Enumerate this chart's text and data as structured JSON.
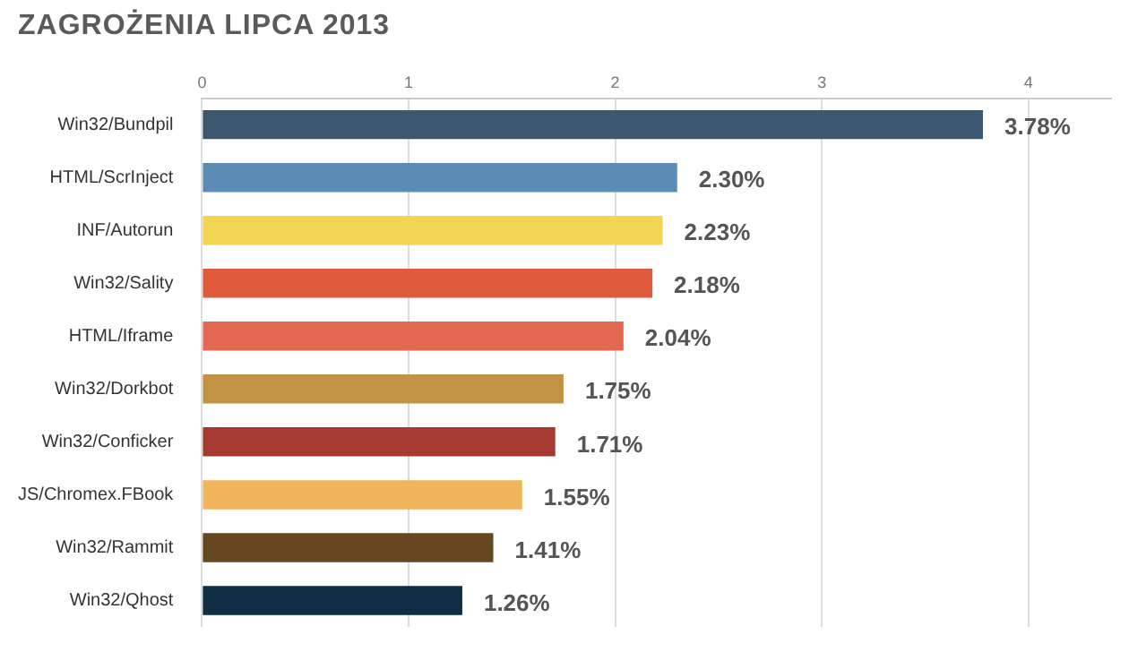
{
  "chart_data": {
    "type": "bar",
    "orientation": "horizontal",
    "title": "ZAGROŻENIA LIPCA 2013",
    "categories": [
      "Win32/Bundpil",
      "HTML/ScrInject",
      "INF/Autorun",
      "Win32/Sality",
      "HTML/Iframe",
      "Win32/Dorkbot",
      "Win32/Conficker",
      "JS/Chromex.FBook",
      "Win32/Rammit",
      "Win32/Qhost"
    ],
    "values": [
      3.78,
      2.3,
      2.23,
      2.18,
      2.04,
      1.75,
      1.71,
      1.55,
      1.41,
      1.26
    ],
    "value_labels": [
      "3.78%",
      "2.30%",
      "2.23%",
      "2.18%",
      "2.04%",
      "1.75%",
      "1.71%",
      "1.55%",
      "1.41%",
      "1.26%"
    ],
    "colors": [
      "#3c5870",
      "#5a8cb6",
      "#f2d352",
      "#e05a3b",
      "#e26852",
      "#c29342",
      "#a63a31",
      "#f0b55a",
      "#674722",
      "#0f2e45"
    ],
    "xlim": [
      0,
      4.4
    ],
    "xticks": [
      0,
      1,
      2,
      3,
      4
    ],
    "grid": "x",
    "legend": false
  }
}
